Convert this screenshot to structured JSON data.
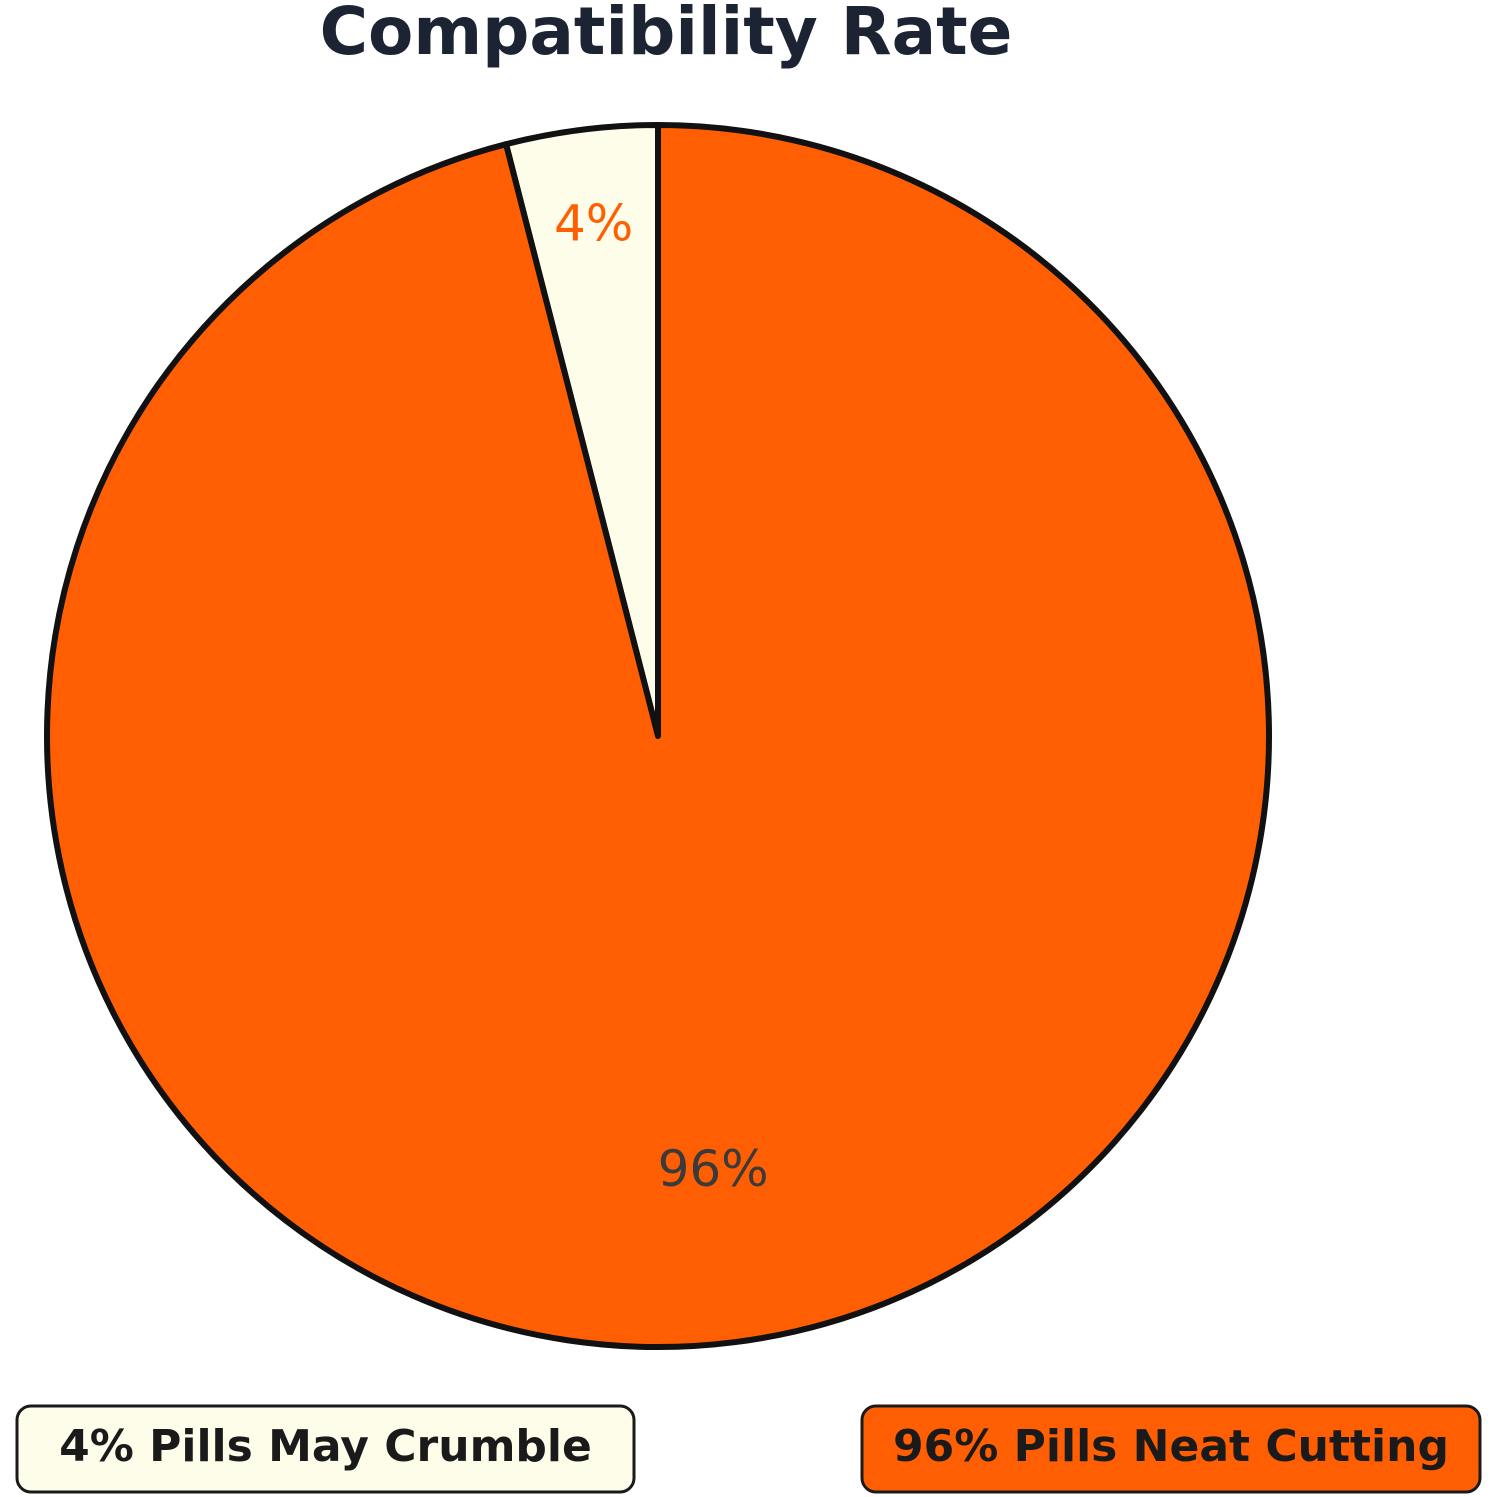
{
  "chart_data": {
    "type": "pie",
    "title": "Compatibility Rate",
    "categories": [
      "4% Pills May Crumble",
      "96% Pills Neat Cutting"
    ],
    "values": [
      4,
      96
    ],
    "value_labels": [
      "4%",
      "96%"
    ],
    "colors": [
      "#fefde9",
      "#ff5f02"
    ]
  }
}
